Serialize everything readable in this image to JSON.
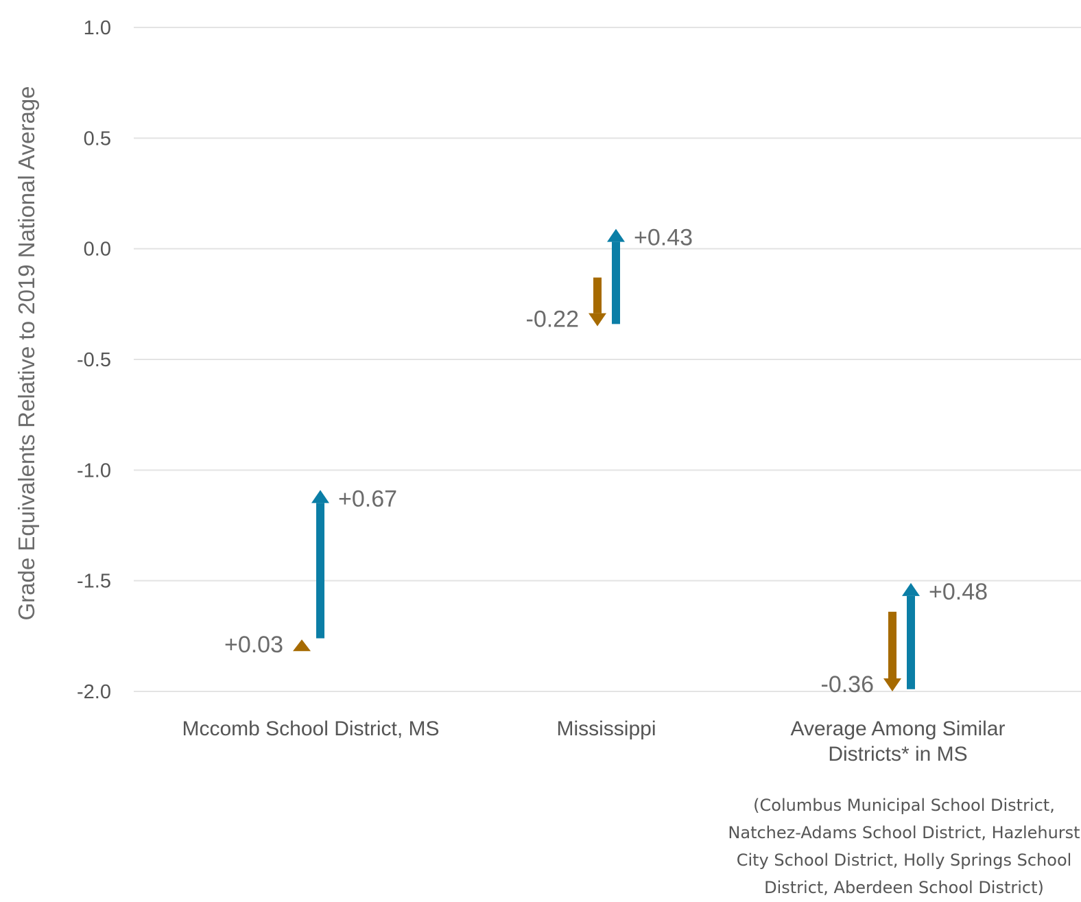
{
  "chart_data": {
    "type": "arrow",
    "ylabel": "Grade Equivalents Relative to 2019 National Average",
    "xlabel": "",
    "title": "",
    "ylim": [
      -2.0,
      1.0
    ],
    "yticks": [
      1.0,
      0.5,
      0.0,
      -0.5,
      -1.0,
      -1.5,
      -2.0
    ],
    "ytick_labels": [
      "1.0",
      "0.5",
      "0.0",
      "-0.5",
      "-1.0",
      "-1.5",
      "-2.0"
    ],
    "grid": true,
    "colors": {
      "first": "#a66a00",
      "second": "#0b7ea6"
    },
    "categories": [
      {
        "name": "Mccomb School District, MS",
        "name_lines": [
          "Mccomb School District, MS"
        ],
        "note_lines": [],
        "first": {
          "start": -1.82,
          "end": -1.79,
          "label": "+0.03"
        },
        "second": {
          "start": -1.76,
          "end": -1.09,
          "label": "+0.67"
        }
      },
      {
        "name": "Mississippi",
        "name_lines": [
          "Mississippi"
        ],
        "note_lines": [],
        "first": {
          "start": -0.13,
          "end": -0.35,
          "label": "-0.22"
        },
        "second": {
          "start": -0.34,
          "end": 0.09,
          "label": "+0.43"
        }
      },
      {
        "name": "Average Among Similar Districts* in MS",
        "name_lines": [
          "Average Among Similar",
          "Districts* in MS"
        ],
        "note_lines": [
          "(Columbus Municipal School District,",
          "Natchez-Adams School District, Hazlehurst",
          "City School District, Holly Springs School",
          "District, Aberdeen School District)"
        ],
        "first": {
          "start": -1.64,
          "end": -2.0,
          "label": "-0.36"
        },
        "second": {
          "start": -1.99,
          "end": -1.51,
          "label": "+0.48"
        }
      }
    ]
  }
}
